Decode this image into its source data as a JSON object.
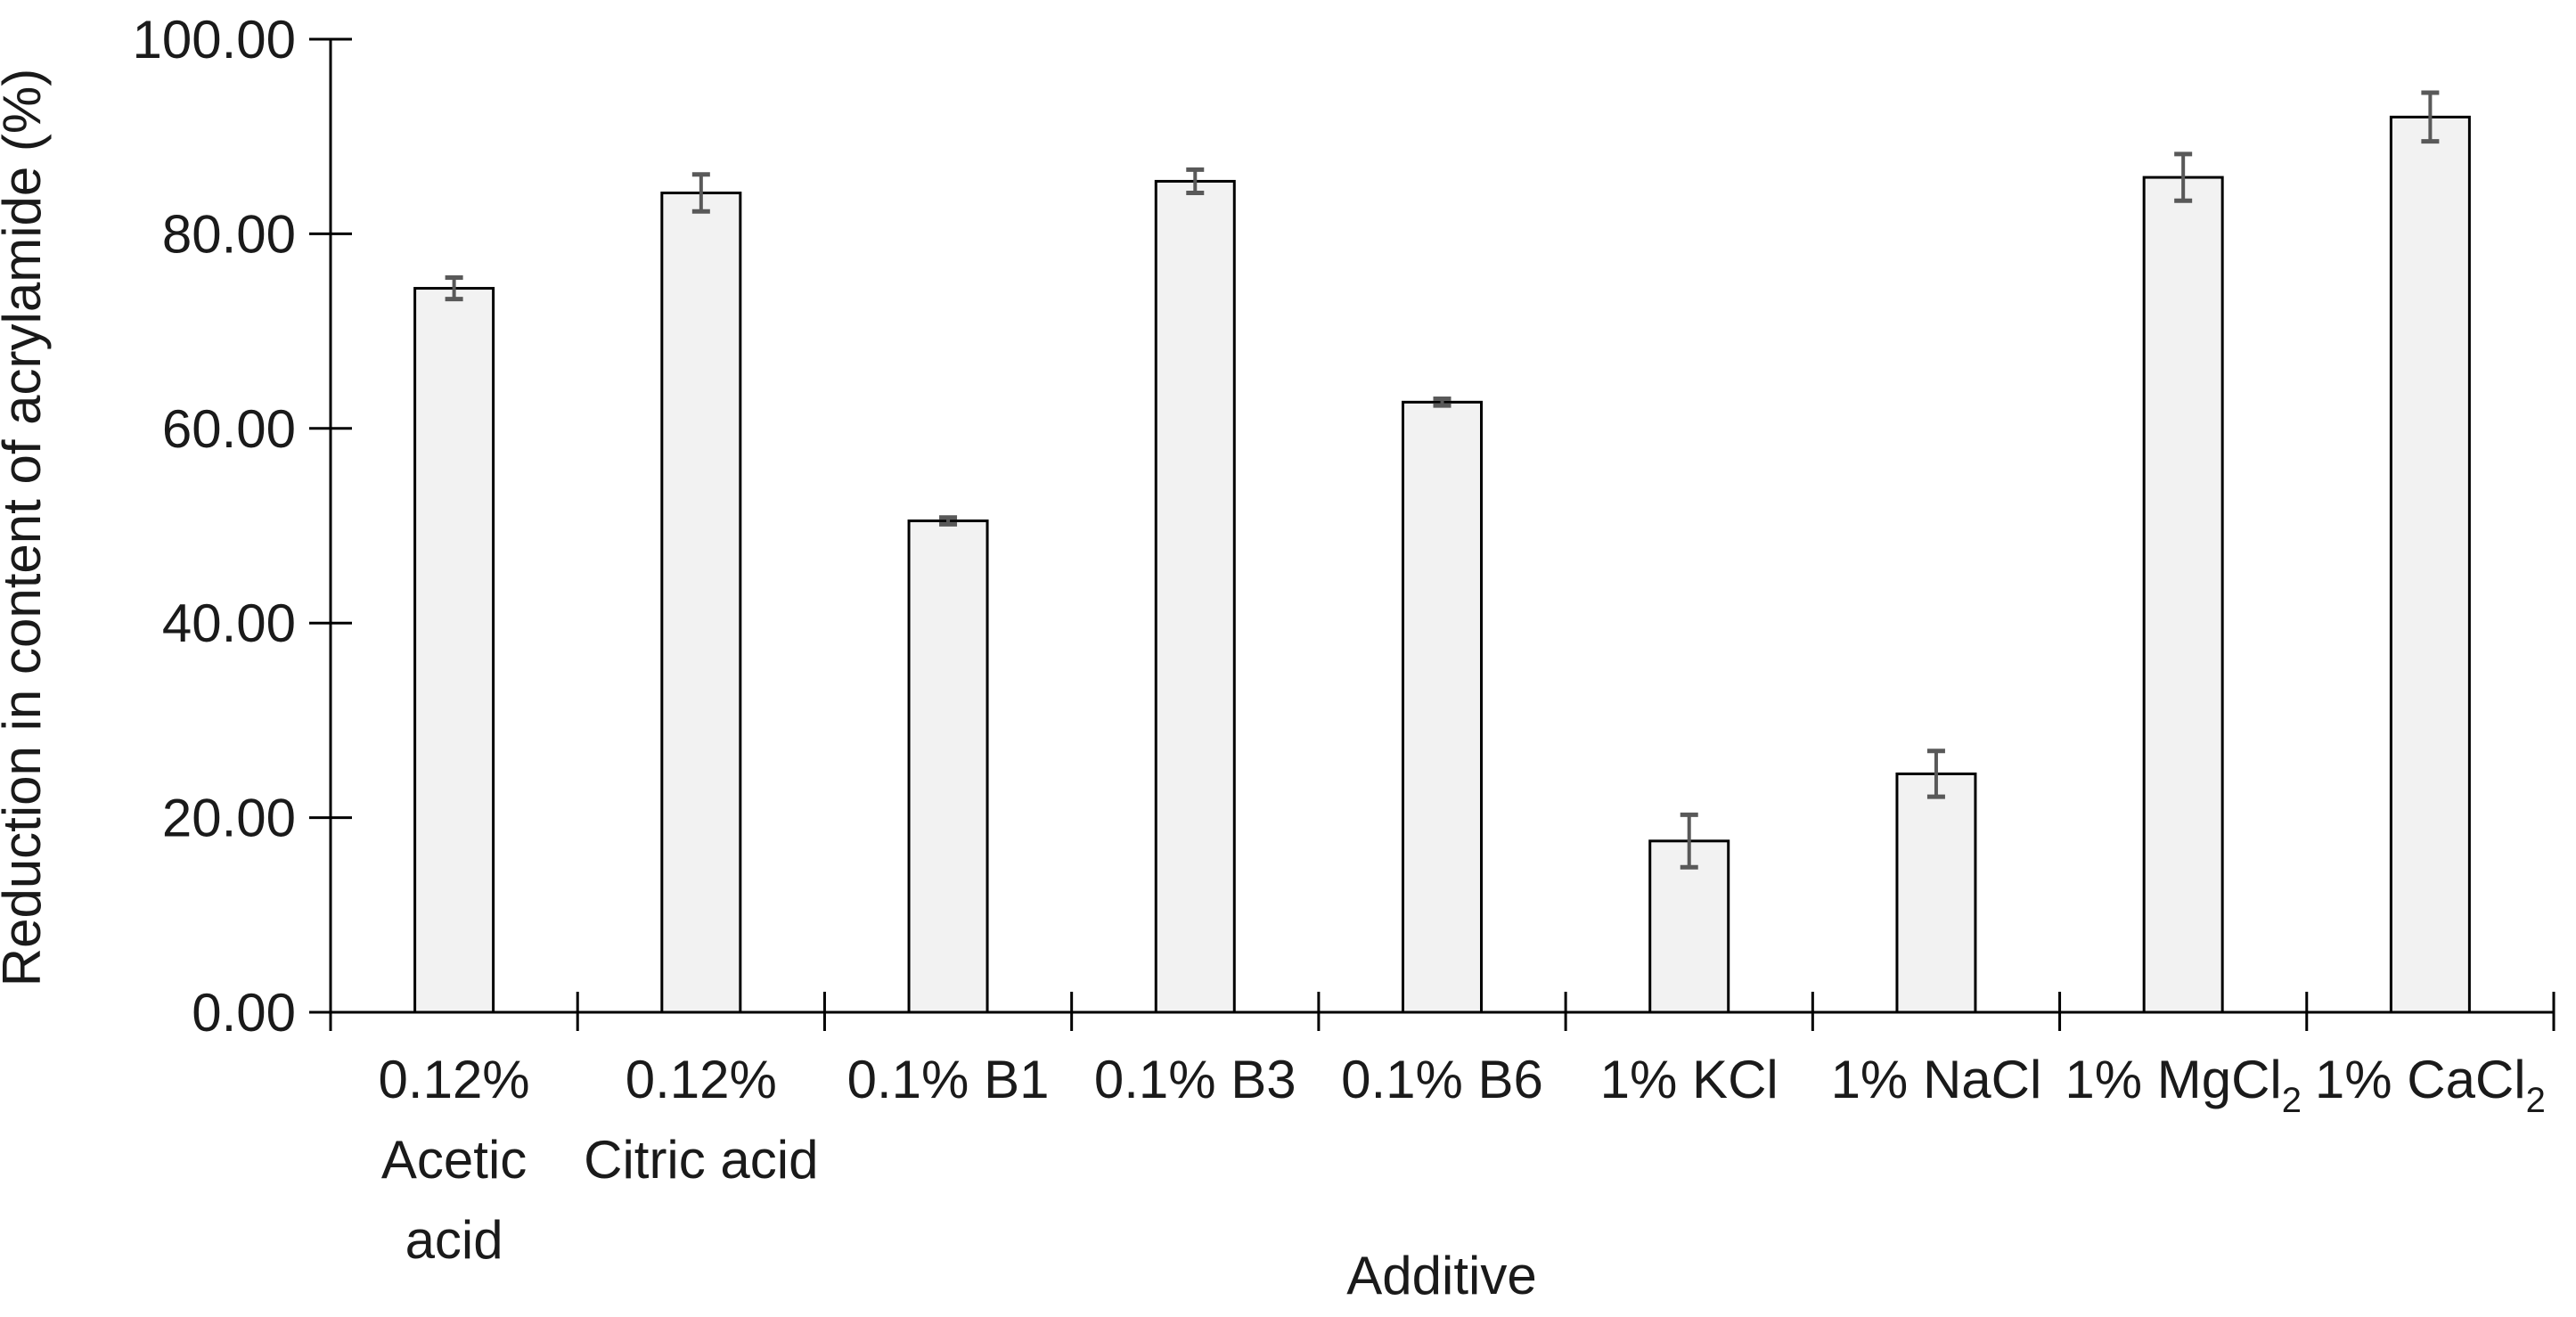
{
  "chart_data": {
    "type": "bar",
    "title": "",
    "xlabel": "Additive",
    "ylabel": "Reduction in content of acrylamide (%)",
    "ylim": [
      0,
      100
    ],
    "ytick_step": 20,
    "ytick_labels": [
      "0.00",
      "20.00",
      "40.00",
      "60.00",
      "80.00",
      "100.00"
    ],
    "categories": [
      {
        "name": "0.12% Acetic acid",
        "lines": [
          {
            "text": "0.12%"
          },
          {
            "text": "Acetic"
          },
          {
            "text": "acid"
          }
        ]
      },
      {
        "name": "0.12% Citric acid",
        "lines": [
          {
            "text": "0.12%"
          },
          {
            "text": "Citric acid"
          }
        ]
      },
      {
        "name": "0.1% B1",
        "lines": [
          {
            "text": "0.1% B1"
          }
        ]
      },
      {
        "name": "0.1% B3",
        "lines": [
          {
            "text": "0.1% B3"
          }
        ]
      },
      {
        "name": "0.1% B6",
        "lines": [
          {
            "text": "0.1% B6"
          }
        ]
      },
      {
        "name": "1% KCl",
        "lines": [
          {
            "text": "1% KCl"
          }
        ]
      },
      {
        "name": "1% NaCl",
        "lines": [
          {
            "text": "1% NaCl"
          }
        ]
      },
      {
        "name": "1% MgCl2",
        "lines": [
          {
            "text": "1% MgCl",
            "sub": "2"
          }
        ]
      },
      {
        "name": "1% CaCl2",
        "lines": [
          {
            "text": "1% CaCl",
            "sub": "2"
          }
        ]
      }
    ],
    "values": [
      74.4,
      84.2,
      50.5,
      85.4,
      62.7,
      17.6,
      24.5,
      85.8,
      92.0
    ],
    "errors": [
      1.1,
      1.9,
      0.35,
      1.2,
      0.35,
      2.7,
      2.35,
      2.4,
      2.5
    ],
    "grid": false,
    "legend": false,
    "colors": {
      "bar_fill": "#f2f2f2",
      "bar_border": "#000000",
      "error_bar": "#595959",
      "axis": "#000000",
      "text": "#1a1a1a"
    }
  }
}
